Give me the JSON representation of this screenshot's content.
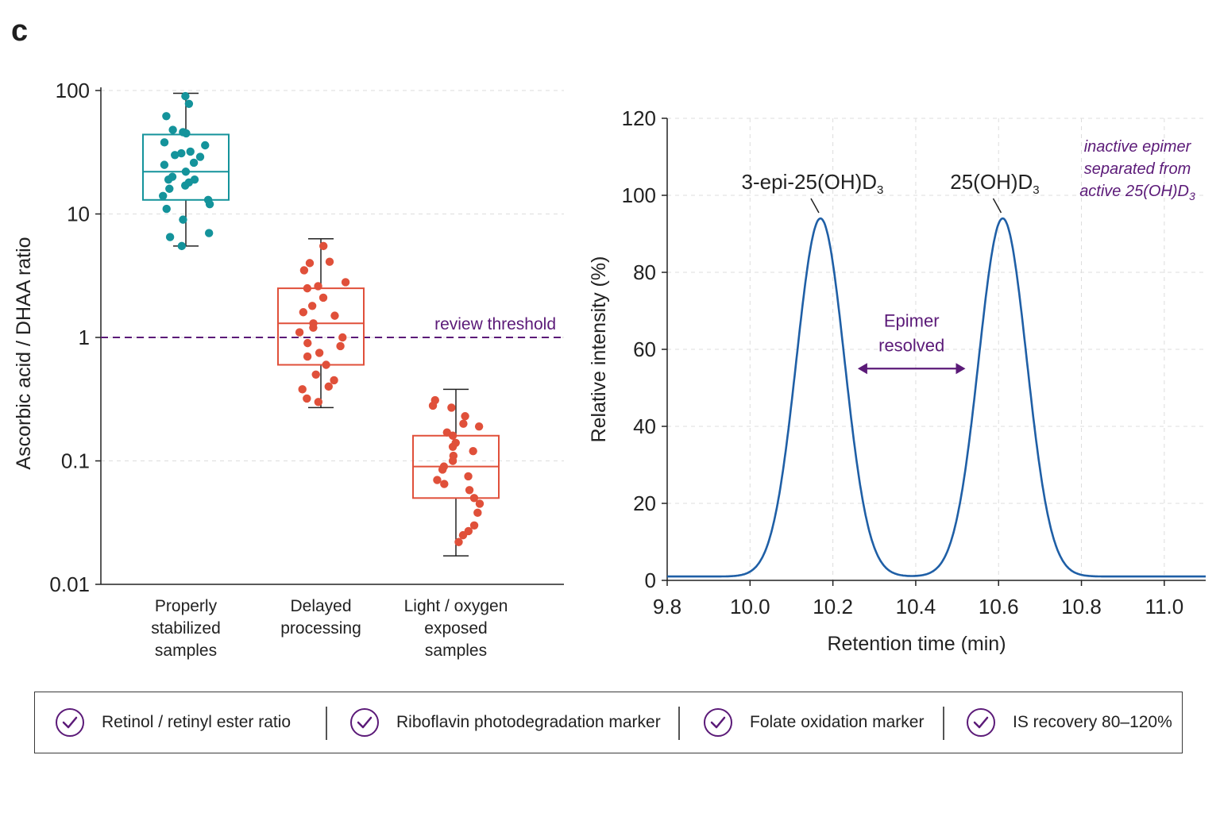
{
  "panel_label": "c",
  "colors": {
    "teal": "#14939b",
    "red": "#e0503a",
    "purple": "#5b1a78",
    "blue": "#1f5fa6",
    "grid": "#dddddd"
  },
  "chart_data": [
    {
      "type": "box",
      "title": "",
      "ylabel": "Ascorbic acid / DHAA ratio",
      "yscale": "log",
      "ylim": [
        0.01,
        100
      ],
      "yticks": [
        "0.01",
        "0.1",
        "1",
        "10",
        "100"
      ],
      "grid": true,
      "categories": [
        "Properly\nstabilized\nsamples",
        "Delayed\nprocessing",
        "Light / oxygen\nexposed\nsamples"
      ],
      "threshold": {
        "value": 1,
        "label": "review threshold"
      },
      "boxes": [
        {
          "category": "Properly stabilized samples",
          "color": "teal",
          "whisker_low": 5.5,
          "q1": 13,
          "median": 22,
          "q3": 44,
          "whisker_high": 95,
          "points": [
            90,
            78,
            62,
            48,
            46,
            45,
            38,
            36,
            32,
            31,
            30,
            29,
            26,
            25,
            22,
            20,
            19,
            19,
            18,
            17,
            16,
            14,
            13,
            12,
            11,
            9,
            7,
            6.5,
            5.5
          ]
        },
        {
          "category": "Delayed processing",
          "color": "red",
          "whisker_low": 0.27,
          "q1": 0.6,
          "median": 1.3,
          "q3": 2.5,
          "whisker_high": 6.3,
          "points": [
            5.5,
            4.1,
            4.0,
            3.5,
            2.8,
            2.6,
            2.5,
            2.1,
            1.8,
            1.6,
            1.5,
            1.3,
            1.2,
            1.1,
            1.0,
            0.9,
            0.85,
            0.75,
            0.7,
            0.6,
            0.5,
            0.45,
            0.4,
            0.38,
            0.32,
            0.3
          ]
        },
        {
          "category": "Light / oxygen exposed samples",
          "color": "red",
          "whisker_low": 0.017,
          "q1": 0.05,
          "median": 0.09,
          "q3": 0.16,
          "whisker_high": 0.38,
          "points": [
            0.31,
            0.28,
            0.27,
            0.23,
            0.2,
            0.19,
            0.17,
            0.16,
            0.14,
            0.13,
            0.12,
            0.11,
            0.1,
            0.09,
            0.085,
            0.075,
            0.07,
            0.065,
            0.058,
            0.05,
            0.045,
            0.038,
            0.03,
            0.027,
            0.025,
            0.022
          ]
        }
      ]
    },
    {
      "type": "line",
      "title": "",
      "xlabel": "Retention time (min)",
      "ylabel": "Relative intensity (%)",
      "xlim": [
        9.8,
        11.1
      ],
      "ylim": [
        0,
        120
      ],
      "xticks": [
        "9.8",
        "10.0",
        "10.2",
        "10.4",
        "10.6",
        "10.8",
        "11.0"
      ],
      "yticks": [
        "0",
        "20",
        "40",
        "60",
        "80",
        "100",
        "120"
      ],
      "grid": true,
      "series": [
        {
          "peaks": [
            {
              "x": 10.17,
              "y": 93,
              "sigma": 0.058
            },
            {
              "x": 10.61,
              "y": 93,
              "sigma": 0.058
            }
          ],
          "baseline": 1
        }
      ],
      "peak_labels": [
        {
          "label_main": "3-epi-25(OH)D",
          "label_sub": "3",
          "x": 10.17
        },
        {
          "label_main": "25(OH)D",
          "label_sub": "3",
          "x": 10.61
        }
      ],
      "arrow": {
        "from": 10.26,
        "to": 10.52,
        "y": 55,
        "label_line1": "Epimer",
        "label_line2": "resolved"
      },
      "note": {
        "line1": "inactive epimer",
        "line2": "separated from",
        "line3_main": "active 25(OH)D",
        "line3_sub": "3"
      }
    }
  ],
  "legend": [
    {
      "label": "Retinol / retinyl ester ratio",
      "icon": "check-circle-icon"
    },
    {
      "label": "Riboflavin photodegradation marker",
      "icon": "check-circle-icon"
    },
    {
      "label": "Folate oxidation marker",
      "icon": "check-circle-icon"
    },
    {
      "label": "IS recovery 80–120%",
      "icon": "check-circle-icon"
    }
  ]
}
